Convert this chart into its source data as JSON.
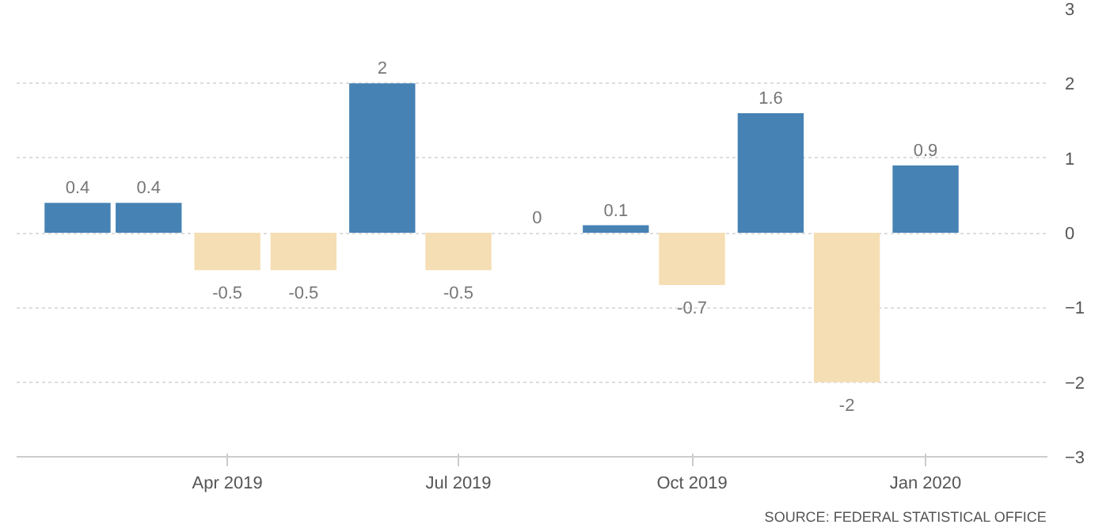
{
  "chart_data": {
    "type": "bar",
    "x": [
      "2019-02",
      "2019-03",
      "2019-04",
      "2019-05",
      "2019-06",
      "2019-07",
      "2019-08",
      "2019-09",
      "2019-10",
      "2019-11",
      "2019-12",
      "2020-01"
    ],
    "values": [
      0.4,
      0.4,
      -0.5,
      -0.5,
      2,
      -0.5,
      0,
      0.1,
      -0.7,
      1.6,
      -2,
      0.9
    ],
    "colors": [
      "#4682b4",
      "#4682b4",
      "#f5deb3",
      "#f5deb3",
      "#4682b4",
      "#f5deb3",
      "#4682b4",
      "#4682b4",
      "#f5deb3",
      "#4682b4",
      "#f5deb3",
      "#4682b4"
    ],
    "data_labels": true,
    "ylim": [
      -3,
      3
    ],
    "yticks": [
      -3,
      -2,
      -1,
      0,
      1,
      2,
      3
    ],
    "xlim": [
      "2019-01-08",
      "2020-02-18"
    ],
    "xticks": [
      {
        "value": "2019-04",
        "label": "Apr 2019"
      },
      {
        "value": "2019-07",
        "label": "Jul 2019"
      },
      {
        "value": "2019-10",
        "label": "Oct 2019"
      },
      {
        "value": "2020-01",
        "label": "Jan 2020"
      }
    ],
    "grid": "y",
    "annotations": [
      "SOURCE: FEDERAL STATISTICAL OFFICE"
    ]
  }
}
